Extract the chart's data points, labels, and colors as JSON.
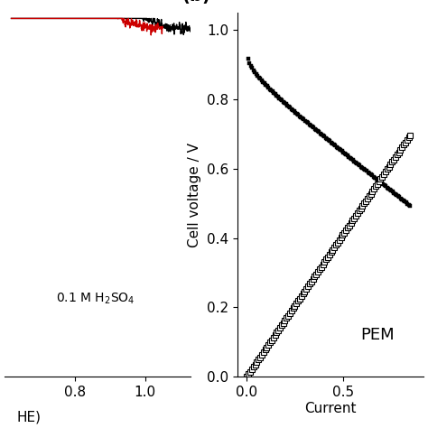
{
  "annotation_left": "0.1 M H₂SO₄",
  "annotation_right": "PEM",
  "ylabel_right": "Cell voltage / V",
  "xlabel_right": "Current",
  "xlim_left": [
    0.6,
    1.13
  ],
  "ylim_left": [
    -6.2,
    0.3
  ],
  "xlim_right": [
    -0.05,
    0.92
  ],
  "ylim_right": [
    0.0,
    1.05
  ],
  "xticks_left": [
    0.8,
    1.0
  ],
  "yticks_right": [
    0.0,
    0.2,
    0.4,
    0.6,
    0.8,
    1.0
  ],
  "xticks_right": [
    0.0,
    0.5
  ],
  "background_color": "#ffffff",
  "color_red": "#cc0000",
  "color_black": "#000000"
}
